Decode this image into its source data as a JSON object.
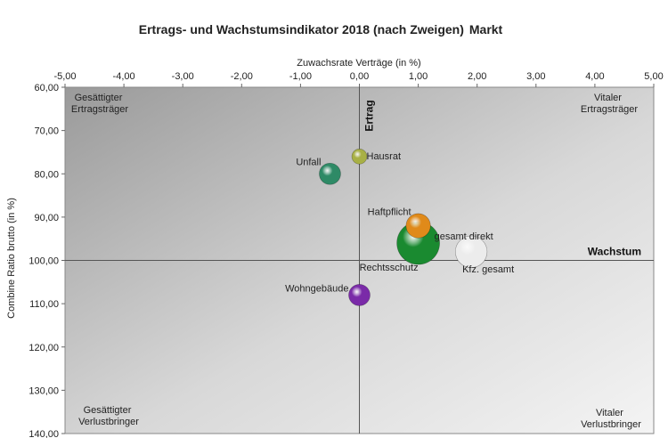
{
  "chart_data": {
    "type": "bubble",
    "title": "Ertrags- und Wachstumsindikator 2018 (nach Zweigen)",
    "title_suffix": "Markt",
    "xlabel": "Zuwachsrate  Verträge  (in %)",
    "ylabel": "Combine  Ratio brutto  (in %)",
    "x_axis_position": "top",
    "y_axis_inverted": true,
    "xlim": [
      -5,
      5
    ],
    "ylim": [
      60,
      140
    ],
    "x_ticks": [
      -5,
      -4,
      -3,
      -2,
      -1,
      0,
      1,
      2,
      3,
      4,
      5
    ],
    "x_tick_labels": [
      "-5,00",
      "-4,00",
      "-3,00",
      "-2,00",
      "-1,00",
      "0,00",
      "1,00",
      "2,00",
      "3,00",
      "4,00",
      "5,00"
    ],
    "y_ticks": [
      60,
      70,
      80,
      90,
      100,
      110,
      120,
      130,
      140
    ],
    "y_tick_labels": [
      "60,00",
      "70,00",
      "80,00",
      "90,00",
      "100,00",
      "110,00",
      "120,00",
      "130,00",
      "140,00"
    ],
    "reference_lines": {
      "x": 0,
      "y": 100
    },
    "reference_labels": {
      "vertical": "Ertrag",
      "horizontal": "Wachstum"
    },
    "quadrant_labels": {
      "top_left": [
        "Gesättigter",
        "Ertragsträger"
      ],
      "top_right": [
        "Vitaler",
        "Ertragsträger"
      ],
      "bottom_left": [
        "Gesättigter",
        "Verlustbringer"
      ],
      "bottom_right": [
        "Vitaler",
        "Verlustbringer"
      ]
    },
    "grid": false,
    "legend": "none",
    "points": [
      {
        "name": "Hausrat",
        "x": 0.0,
        "y": 76,
        "size": 0.5,
        "color": "#a8b045"
      },
      {
        "name": "Unfall",
        "x": -0.5,
        "y": 80,
        "size": 1.0,
        "color": "#2e8a66"
      },
      {
        "name": "Haftpflicht",
        "x": 1.0,
        "y": 92,
        "size": 1.3,
        "color": "#e08a1a"
      },
      {
        "name": "Rechtsschutz",
        "x": 1.0,
        "y": 96,
        "size": 4.0,
        "color": "#1a8a30"
      },
      {
        "name": "gesamt direkt",
        "x": 1.0,
        "y": 96,
        "size": 0.0,
        "color": "#1a8a30"
      },
      {
        "name": "Kfz. gesamt",
        "x": 1.9,
        "y": 98,
        "size": 2.2,
        "color": "#ececec"
      },
      {
        "name": "Wohngebäude",
        "x": 0.0,
        "y": 108,
        "size": 1.0,
        "color": "#7a2aa8"
      }
    ]
  }
}
